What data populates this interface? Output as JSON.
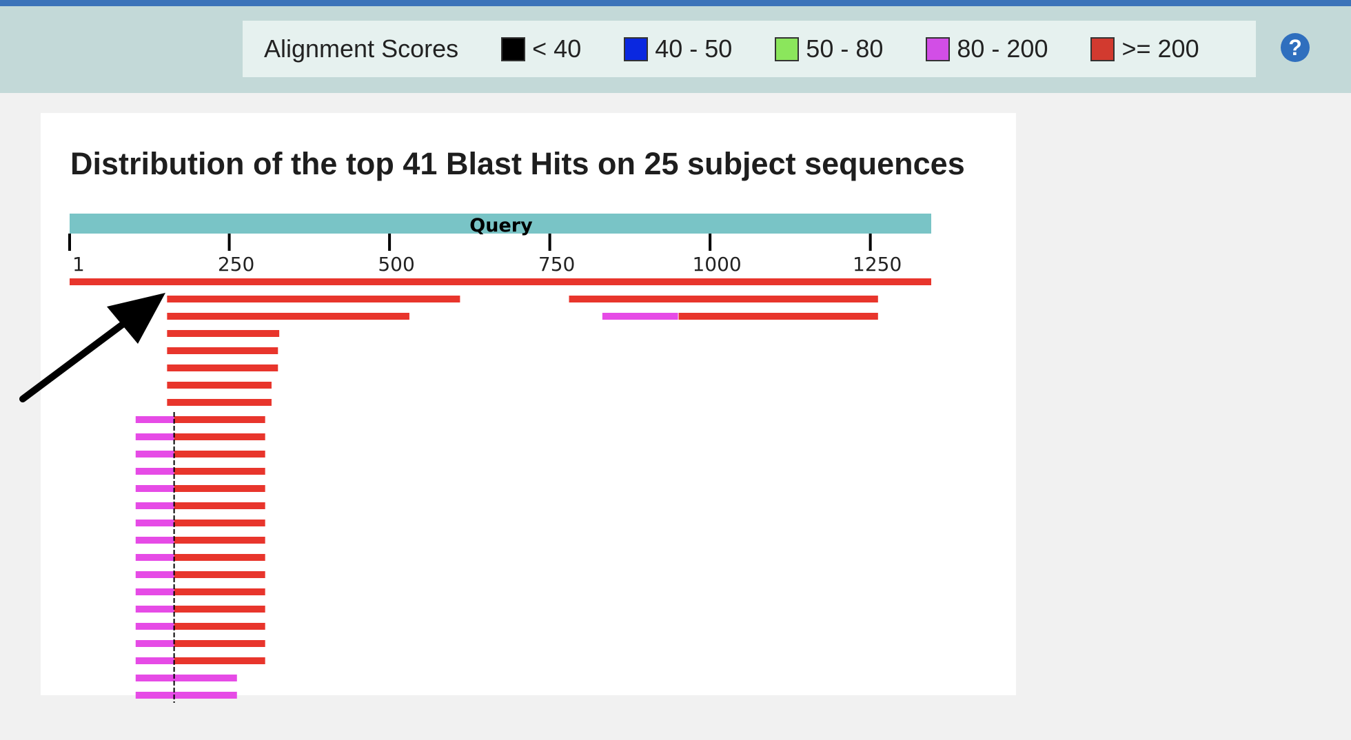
{
  "legend": {
    "title": "Alignment Scores",
    "items": [
      {
        "label": "< 40",
        "color": "#000000"
      },
      {
        "label": "40 - 50",
        "color": "#0a28e0"
      },
      {
        "label": "50 - 80",
        "color": "#8be65c"
      },
      {
        "label": "80 - 200",
        "color": "#d24ee6"
      },
      {
        "label": ">= 200",
        "color": "#d23a2f"
      }
    ]
  },
  "help": {
    "symbol": "?"
  },
  "panel": {
    "title": "Distribution of the top 41 Blast Hits on 25 subject sequences",
    "query_label": "Query"
  },
  "chart_data": {
    "type": "alignment-map",
    "query_range": [
      1,
      1345
    ],
    "ticks": [
      1,
      250,
      500,
      750,
      1000,
      1250
    ],
    "colors": {
      "score_80_200": "#e64be6",
      "score_ge_200": "#e8352c",
      "query_bar": "#79c4c6",
      "separator": "#000000"
    },
    "rows": [
      [
        {
          "start": 1,
          "end": 1345,
          "score": ">=200"
        }
      ],
      [
        {
          "start": 153,
          "end": 610,
          "score": ">=200"
        },
        {
          "start": 780,
          "end": 1262,
          "score": ">=200"
        }
      ],
      [
        {
          "start": 153,
          "end": 531,
          "score": ">=200"
        },
        {
          "start": 832,
          "end": 950,
          "score": "80-200"
        },
        {
          "start": 951,
          "end": 1262,
          "score": ">=200"
        }
      ],
      [
        {
          "start": 153,
          "end": 328,
          "score": ">=200"
        }
      ],
      [
        {
          "start": 153,
          "end": 326,
          "score": ">=200"
        }
      ],
      [
        {
          "start": 153,
          "end": 326,
          "score": ">=200"
        }
      ],
      [
        {
          "start": 153,
          "end": 316,
          "score": ">=200"
        }
      ],
      [
        {
          "start": 153,
          "end": 316,
          "score": ">=200"
        }
      ],
      [
        {
          "start": 104,
          "end": 164,
          "score": "80-200"
        },
        {
          "start": 164,
          "end": 306,
          "score": ">=200"
        }
      ],
      [
        {
          "start": 104,
          "end": 164,
          "score": "80-200"
        },
        {
          "start": 164,
          "end": 306,
          "score": ">=200"
        }
      ],
      [
        {
          "start": 104,
          "end": 164,
          "score": "80-200"
        },
        {
          "start": 164,
          "end": 306,
          "score": ">=200"
        }
      ],
      [
        {
          "start": 104,
          "end": 164,
          "score": "80-200"
        },
        {
          "start": 164,
          "end": 306,
          "score": ">=200"
        }
      ],
      [
        {
          "start": 104,
          "end": 164,
          "score": "80-200"
        },
        {
          "start": 164,
          "end": 306,
          "score": ">=200"
        }
      ],
      [
        {
          "start": 104,
          "end": 164,
          "score": "80-200"
        },
        {
          "start": 164,
          "end": 306,
          "score": ">=200"
        }
      ],
      [
        {
          "start": 104,
          "end": 164,
          "score": "80-200"
        },
        {
          "start": 164,
          "end": 306,
          "score": ">=200"
        }
      ],
      [
        {
          "start": 104,
          "end": 164,
          "score": "80-200"
        },
        {
          "start": 164,
          "end": 306,
          "score": ">=200"
        }
      ],
      [
        {
          "start": 104,
          "end": 164,
          "score": "80-200"
        },
        {
          "start": 164,
          "end": 306,
          "score": ">=200"
        }
      ],
      [
        {
          "start": 104,
          "end": 164,
          "score": "80-200"
        },
        {
          "start": 164,
          "end": 306,
          "score": ">=200"
        }
      ],
      [
        {
          "start": 104,
          "end": 164,
          "score": "80-200"
        },
        {
          "start": 164,
          "end": 306,
          "score": ">=200"
        }
      ],
      [
        {
          "start": 104,
          "end": 164,
          "score": "80-200"
        },
        {
          "start": 164,
          "end": 306,
          "score": ">=200"
        }
      ],
      [
        {
          "start": 104,
          "end": 164,
          "score": "80-200"
        },
        {
          "start": 164,
          "end": 306,
          "score": ">=200"
        }
      ],
      [
        {
          "start": 104,
          "end": 164,
          "score": "80-200"
        },
        {
          "start": 164,
          "end": 306,
          "score": ">=200"
        }
      ],
      [
        {
          "start": 104,
          "end": 164,
          "score": "80-200"
        },
        {
          "start": 164,
          "end": 306,
          "score": ">=200"
        }
      ],
      [
        {
          "start": 104,
          "end": 262,
          "score": "80-200"
        }
      ],
      [
        {
          "start": 104,
          "end": 262,
          "score": "80-200"
        }
      ]
    ],
    "divider_position": 164,
    "divider_rows": [
      8,
      24
    ]
  }
}
